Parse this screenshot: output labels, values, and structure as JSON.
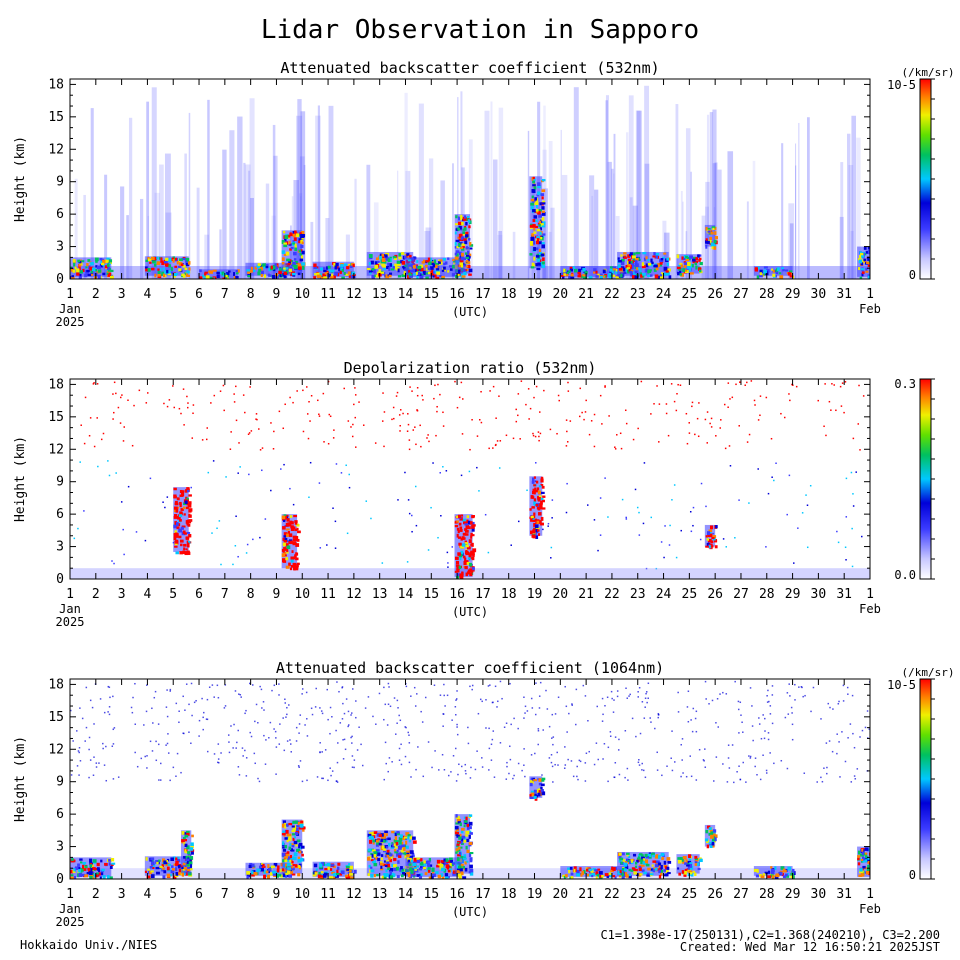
{
  "page": {
    "title": "Lidar Observation in Sapporo",
    "footer_left": "Hokkaido Univ./NIES",
    "footer_constants": "C1=1.398e-17(250131),C2=1.368(240210), C3=2.200",
    "footer_created": "Created: Wed Mar 12 16:50:21 2025JST"
  },
  "chart_data": [
    {
      "type": "heatmap",
      "title": "Attenuated backscatter coefficient (532nm)",
      "ylabel": "Height (km)",
      "xlabel": "(UTC)",
      "x_tick_labels": [
        "1",
        "2",
        "3",
        "4",
        "5",
        "6",
        "7",
        "8",
        "9",
        "10",
        "11",
        "12",
        "13",
        "14",
        "15",
        "16",
        "17",
        "18",
        "19",
        "20",
        "21",
        "22",
        "23",
        "24",
        "25",
        "26",
        "27",
        "28",
        "29",
        "30",
        "31",
        "1"
      ],
      "x_sub_labels": {
        "start_month": "Jan",
        "start_year": "2025",
        "end_month": "Feb"
      },
      "y_ticks": [
        0,
        3,
        6,
        9,
        12,
        15,
        18
      ],
      "ylim": [
        0,
        18.5
      ],
      "colorbar": {
        "unit": "(/km/sr)",
        "max_label": "10-5",
        "min_label": "0"
      },
      "cloud_layers": [
        {
          "day_start": 1.0,
          "day_end": 2.6,
          "base_km": 0.2,
          "top_km": 2.0
        },
        {
          "day_start": 3.9,
          "day_end": 5.6,
          "base_km": 0.3,
          "top_km": 2.1
        },
        {
          "day_start": 6.0,
          "day_end": 7.5,
          "base_km": 0.1,
          "top_km": 0.9
        },
        {
          "day_start": 7.8,
          "day_end": 9.6,
          "base_km": 0.3,
          "top_km": 1.5
        },
        {
          "day_start": 9.2,
          "day_end": 10.0,
          "base_km": 0.5,
          "top_km": 4.5
        },
        {
          "day_start": 10.4,
          "day_end": 12.0,
          "base_km": 0.2,
          "top_km": 1.6
        },
        {
          "day_start": 12.5,
          "day_end": 14.3,
          "base_km": 0.3,
          "top_km": 2.5
        },
        {
          "day_start": 14.0,
          "day_end": 16.2,
          "base_km": 0.2,
          "top_km": 2.0
        },
        {
          "day_start": 15.9,
          "day_end": 16.5,
          "base_km": 0.5,
          "top_km": 6.0
        },
        {
          "day_start": 18.8,
          "day_end": 19.3,
          "base_km": 1.0,
          "top_km": 9.5
        },
        {
          "day_start": 20.0,
          "day_end": 22.5,
          "base_km": 0.2,
          "top_km": 1.2
        },
        {
          "day_start": 22.2,
          "day_end": 24.2,
          "base_km": 0.3,
          "top_km": 2.5
        },
        {
          "day_start": 24.5,
          "day_end": 25.4,
          "base_km": 0.5,
          "top_km": 2.3
        },
        {
          "day_start": 25.6,
          "day_end": 26.0,
          "base_km": 3.0,
          "top_km": 5.0
        },
        {
          "day_start": 27.5,
          "day_end": 29.0,
          "base_km": 0.3,
          "top_km": 1.2
        },
        {
          "day_start": 31.5,
          "day_end": 32.0,
          "base_km": 0.2,
          "top_km": 3.0
        }
      ]
    },
    {
      "type": "heatmap",
      "title": "Depolarization ratio (532nm)",
      "ylabel": "Height (km)",
      "xlabel": "(UTC)",
      "x_tick_labels": [
        "1",
        "2",
        "3",
        "4",
        "5",
        "6",
        "7",
        "8",
        "9",
        "10",
        "11",
        "12",
        "13",
        "14",
        "15",
        "16",
        "17",
        "18",
        "19",
        "20",
        "21",
        "22",
        "23",
        "24",
        "25",
        "26",
        "27",
        "28",
        "29",
        "30",
        "31",
        "1"
      ],
      "x_sub_labels": {
        "start_month": "Jan",
        "start_year": "2025",
        "end_month": "Feb"
      },
      "y_ticks": [
        0,
        3,
        6,
        9,
        12,
        15,
        18
      ],
      "ylim": [
        0,
        18.5
      ],
      "colorbar": {
        "unit": "",
        "max_label": "0.3",
        "min_label": "0.0"
      },
      "depol_regions": [
        {
          "day_start": 5.0,
          "day_end": 5.6,
          "base_km": 2.5,
          "top_km": 8.5
        },
        {
          "day_start": 9.2,
          "day_end": 9.8,
          "base_km": 1.0,
          "top_km": 6.0
        },
        {
          "day_start": 15.9,
          "day_end": 16.6,
          "base_km": 0.2,
          "top_km": 6.0
        },
        {
          "day_start": 18.8,
          "day_end": 19.3,
          "base_km": 4.0,
          "top_km": 9.5
        },
        {
          "day_start": 25.6,
          "day_end": 26.0,
          "base_km": 3.0,
          "top_km": 5.0
        }
      ]
    },
    {
      "type": "heatmap",
      "title": "Attenuated backscatter coefficient (1064nm)",
      "ylabel": "Height (km)",
      "xlabel": "(UTC)",
      "x_tick_labels": [
        "1",
        "2",
        "3",
        "4",
        "5",
        "6",
        "7",
        "8",
        "9",
        "10",
        "11",
        "12",
        "13",
        "14",
        "15",
        "16",
        "17",
        "18",
        "19",
        "20",
        "21",
        "22",
        "23",
        "24",
        "25",
        "26",
        "27",
        "28",
        "29",
        "30",
        "31",
        "1"
      ],
      "x_sub_labels": {
        "start_month": "Jan",
        "start_year": "2025",
        "end_month": "Feb"
      },
      "y_ticks": [
        0,
        3,
        6,
        9,
        12,
        15,
        18
      ],
      "ylim": [
        0,
        18.5
      ],
      "colorbar": {
        "unit": "(/km/sr)",
        "max_label": "10-5",
        "min_label": "0"
      },
      "cloud_layers": [
        {
          "day_start": 1.0,
          "day_end": 2.6,
          "base_km": 0.2,
          "top_km": 2.0
        },
        {
          "day_start": 3.9,
          "day_end": 5.6,
          "base_km": 0.3,
          "top_km": 2.1
        },
        {
          "day_start": 5.3,
          "day_end": 5.7,
          "base_km": 0.5,
          "top_km": 4.5
        },
        {
          "day_start": 7.8,
          "day_end": 9.6,
          "base_km": 0.3,
          "top_km": 1.5
        },
        {
          "day_start": 9.2,
          "day_end": 10.0,
          "base_km": 0.5,
          "top_km": 5.5
        },
        {
          "day_start": 10.4,
          "day_end": 12.0,
          "base_km": 0.2,
          "top_km": 1.6
        },
        {
          "day_start": 12.5,
          "day_end": 14.3,
          "base_km": 0.3,
          "top_km": 4.5
        },
        {
          "day_start": 14.0,
          "day_end": 16.2,
          "base_km": 0.2,
          "top_km": 2.0
        },
        {
          "day_start": 15.9,
          "day_end": 16.5,
          "base_km": 0.5,
          "top_km": 6.0
        },
        {
          "day_start": 18.8,
          "day_end": 19.3,
          "base_km": 7.5,
          "top_km": 9.5
        },
        {
          "day_start": 20.0,
          "day_end": 22.5,
          "base_km": 0.2,
          "top_km": 1.2
        },
        {
          "day_start": 22.2,
          "day_end": 24.2,
          "base_km": 0.3,
          "top_km": 2.5
        },
        {
          "day_start": 24.5,
          "day_end": 25.4,
          "base_km": 0.5,
          "top_km": 2.3
        },
        {
          "day_start": 25.6,
          "day_end": 26.0,
          "base_km": 3.0,
          "top_km": 5.0
        },
        {
          "day_start": 27.5,
          "day_end": 29.0,
          "base_km": 0.3,
          "top_km": 1.2
        },
        {
          "day_start": 31.5,
          "day_end": 32.0,
          "base_km": 0.2,
          "top_km": 3.0
        }
      ]
    }
  ]
}
